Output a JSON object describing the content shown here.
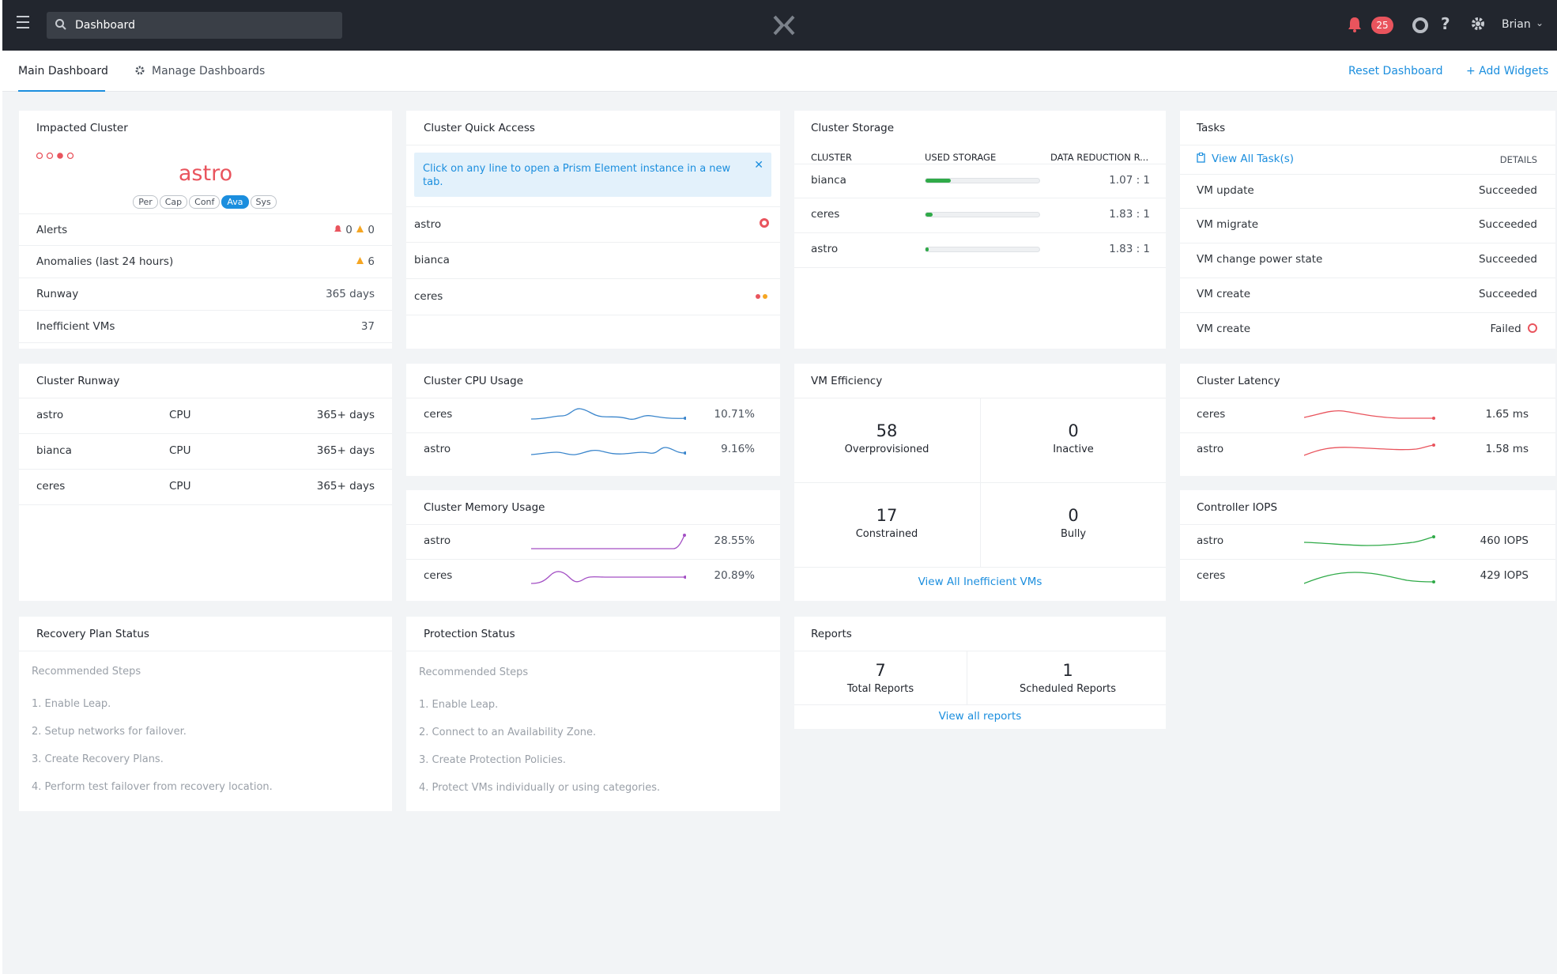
{
  "topbar": {
    "search_value": "Dashboard",
    "notifications_count": "25",
    "user_name": "Brian"
  },
  "tabs": {
    "main": "Main Dashboard",
    "manage": "Manage Dashboards",
    "reset": "Reset Dashboard",
    "add_widgets": "+ Add Widgets"
  },
  "impacted_cluster": {
    "title": "Impacted Cluster",
    "name": "astro",
    "tags": [
      "Per",
      "Cap",
      "Conf",
      "Ava",
      "Sys"
    ],
    "active_tag": "Ava",
    "alerts_label": "Alerts",
    "alerts_critical": "0",
    "alerts_warning": "0",
    "anomalies_label": "Anomalies (last 24 hours)",
    "anomalies_value": "6",
    "runway_label": "Runway",
    "runway_value": "365 days",
    "inefficient_label": "Inefficient VMs",
    "inefficient_value": "37"
  },
  "quick_access": {
    "title": "Cluster Quick Access",
    "info": "Click on any line to open a Prism Element instance in a new tab.",
    "clusters": [
      "astro",
      "bianca",
      "ceres"
    ]
  },
  "storage": {
    "title": "Cluster Storage",
    "headers": [
      "CLUSTER",
      "USED STORAGE",
      "DATA REDUCTION R..."
    ],
    "rows": [
      {
        "cluster": "bianca",
        "used_fraction": 0.22,
        "ratio": "1.07 : 1"
      },
      {
        "cluster": "ceres",
        "used_fraction": 0.06,
        "ratio": "1.83 : 1"
      },
      {
        "cluster": "astro",
        "used_fraction": 0.03,
        "ratio": "1.83 : 1"
      }
    ]
  },
  "tasks": {
    "title": "Tasks",
    "view_all": "View All Task(s)",
    "details": "DETAILS",
    "rows": [
      {
        "name": "VM update",
        "status": "Succeeded"
      },
      {
        "name": "VM migrate",
        "status": "Succeeded"
      },
      {
        "name": "VM change power state",
        "status": "Succeeded"
      },
      {
        "name": "VM create",
        "status": "Succeeded"
      },
      {
        "name": "VM create",
        "status": "Failed"
      }
    ]
  },
  "runway": {
    "title": "Cluster Runway",
    "rows": [
      {
        "cluster": "astro",
        "resource": "CPU",
        "value": "365+ days"
      },
      {
        "cluster": "bianca",
        "resource": "CPU",
        "value": "365+ days"
      },
      {
        "cluster": "ceres",
        "resource": "CPU",
        "value": "365+ days"
      }
    ]
  },
  "cpu": {
    "title": "Cluster CPU Usage",
    "rows": [
      {
        "cluster": "ceres",
        "value": "10.71%"
      },
      {
        "cluster": "astro",
        "value": "9.16%"
      }
    ]
  },
  "memory": {
    "title": "Cluster Memory Usage",
    "rows": [
      {
        "cluster": "astro",
        "value": "28.55%"
      },
      {
        "cluster": "ceres",
        "value": "20.89%"
      }
    ]
  },
  "vm_eff": {
    "title": "VM Efficiency",
    "overprovisioned": "58",
    "overprovisioned_label": "Overprovisioned",
    "inactive": "0",
    "inactive_label": "Inactive",
    "constrained": "17",
    "constrained_label": "Constrained",
    "bully": "0",
    "bully_label": "Bully",
    "link": "View All Inefficient VMs"
  },
  "latency": {
    "title": "Cluster Latency",
    "rows": [
      {
        "cluster": "ceres",
        "value": "1.65 ms"
      },
      {
        "cluster": "astro",
        "value": "1.58 ms"
      }
    ]
  },
  "iops": {
    "title": "Controller IOPS",
    "rows": [
      {
        "cluster": "astro",
        "value": "460 IOPS"
      },
      {
        "cluster": "ceres",
        "value": "429 IOPS"
      }
    ]
  },
  "recovery": {
    "title": "Recovery Plan Status",
    "heading": "Recommended Steps",
    "steps": [
      "1. Enable Leap.",
      "2. Setup networks for failover.",
      "3. Create Recovery Plans.",
      "4. Perform test failover from recovery location."
    ]
  },
  "protection": {
    "title": "Protection Status",
    "heading": "Recommended Steps",
    "steps": [
      "1. Enable Leap.",
      "2. Connect to an Availability Zone.",
      "3. Create Protection Policies.",
      "4. Protect VMs individually or using categories."
    ]
  },
  "reports": {
    "title": "Reports",
    "total": "7",
    "total_label": "Total Reports",
    "scheduled": "1",
    "scheduled_label": "Scheduled Reports",
    "link": "View all reports"
  },
  "colors": {
    "accent": "#1b8ede",
    "critical": "#e9545d",
    "warning": "#f5a623",
    "success": "#2faa48",
    "memory": "#a34fc4"
  }
}
